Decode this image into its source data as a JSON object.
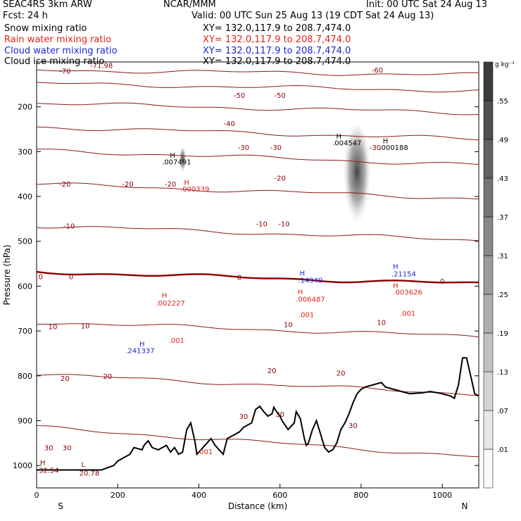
{
  "header": {
    "line1_left": "SEAC4RS  3km ARW",
    "line1_center": "NCAR/MMM",
    "line1_right": "Init: 00 UTC Sat 24 Aug 13",
    "line2_left": "Fcst:    24 h",
    "line2_right": "Valid: 00 UTC Sun 25 Aug 13 (19 CDT Sat 24 Aug 13)",
    "fields": [
      {
        "label": "Snow mixing ratio",
        "xy": "XY= 132.0,117.9 to 208.7,474.0",
        "color": "#000000"
      },
      {
        "label": "Rain water mixing ratio",
        "xy": "XY= 132.0,117.9 to 208.7,474.0",
        "color": "#e0241c"
      },
      {
        "label": "Cloud water mixing ratio",
        "xy": "XY= 132.0,117.9 to 208.7,474.0",
        "color": "#1c28d0"
      },
      {
        "label": "Cloud ice mixing ratio",
        "xy": "XY= 132.0,117.9 to 208.7,474.0",
        "color": "#000000"
      }
    ]
  },
  "chart_data": {
    "type": "line",
    "xlabel": "Distance (km)",
    "ylabel": "Pressure (hPa)",
    "xlim": [
      0,
      1090
    ],
    "ylim": [
      1050,
      100
    ],
    "x_ticks": [
      0,
      200,
      400,
      600,
      800,
      1000
    ],
    "y_ticks": [
      200,
      300,
      400,
      500,
      600,
      700,
      800,
      900,
      1000
    ],
    "x_end_labels": [
      "S",
      "N"
    ],
    "colorbar": {
      "unit": "g kg⁻¹",
      "labels": [
        ".01",
        ".07",
        ".13",
        ".19",
        ".25",
        ".31",
        ".37",
        ".43",
        ".49",
        ".55"
      ]
    },
    "terrain": {
      "x": [
        0,
        80,
        160,
        190,
        200,
        230,
        240,
        260,
        265,
        275,
        285,
        300,
        320,
        330,
        340,
        350,
        360,
        370,
        380,
        390,
        395,
        410,
        420,
        430,
        440,
        450,
        460,
        470,
        480,
        490,
        500,
        510,
        520,
        530,
        535,
        540,
        550,
        560,
        570,
        580,
        585,
        590,
        600,
        605,
        620,
        635,
        640,
        650,
        660,
        665,
        670,
        680,
        690,
        700,
        710,
        720,
        730,
        740,
        750,
        760,
        770,
        780,
        790,
        800,
        810,
        830,
        850,
        860,
        880,
        900,
        920,
        950,
        970,
        990,
        1000,
        1020,
        1030,
        1040,
        1050,
        1060,
        1070,
        1075,
        1080,
        1090
      ],
      "pressure": [
        1010,
        1010,
        1010,
        1000,
        990,
        975,
        960,
        965,
        955,
        945,
        960,
        965,
        955,
        970,
        960,
        975,
        970,
        920,
        905,
        945,
        975,
        960,
        950,
        940,
        955,
        965,
        975,
        940,
        935,
        930,
        925,
        915,
        910,
        905,
        890,
        875,
        868,
        880,
        890,
        885,
        870,
        878,
        890,
        900,
        920,
        905,
        880,
        895,
        940,
        955,
        950,
        920,
        900,
        930,
        960,
        970,
        965,
        950,
        920,
        905,
        885,
        860,
        840,
        830,
        825,
        820,
        815,
        825,
        830,
        835,
        840,
        838,
        835,
        838,
        840,
        845,
        850,
        820,
        760,
        760,
        800,
        820,
        840,
        845
      ]
    },
    "temperature_isotherms": [
      {
        "label": "0",
        "p0": 568,
        "slope": 0.025,
        "bold": true
      },
      {
        "label": "-10",
        "p0": 465,
        "slope": 0.03
      },
      {
        "label": "-20",
        "p0": 372,
        "slope": 0.03
      },
      {
        "label": "-30",
        "p0": 297,
        "slope": 0.03
      },
      {
        "label": "-40",
        "p0": 245,
        "slope": 0.025
      },
      {
        "label": "-50",
        "p0": 192,
        "slope": 0.02
      },
      {
        "label": "-60",
        "p0": 148,
        "slope": 0.015
      },
      {
        "label": "-70",
        "p0": 118,
        "slope": 0.01
      },
      {
        "label": "10",
        "p0": 680,
        "slope": 0.03
      },
      {
        "label": "20",
        "p0": 797,
        "slope": 0.04
      },
      {
        "label": "30",
        "p0": 915,
        "slope": 0.06
      }
    ],
    "isotherm_labels": [
      {
        "text": "-70",
        "x": 70,
        "p": 120
      },
      {
        "text": "-71.98",
        "x": 160,
        "p": 107
      },
      {
        "text": "-60",
        "x": 840,
        "p": 117
      },
      {
        "text": "-50",
        "x": 500,
        "p": 174
      },
      {
        "text": "-50",
        "x": 600,
        "p": 174
      },
      {
        "text": "-40",
        "x": 475,
        "p": 237
      },
      {
        "text": "-30",
        "x": 510,
        "p": 290
      },
      {
        "text": "-30",
        "x": 590,
        "p": 290
      },
      {
        "text": "-30",
        "x": 835,
        "p": 290
      },
      {
        "text": "-20",
        "x": 70,
        "p": 372
      },
      {
        "text": "-20",
        "x": 225,
        "p": 372
      },
      {
        "text": "-20",
        "x": 330,
        "p": 372
      },
      {
        "text": "-20",
        "x": 600,
        "p": 358
      },
      {
        "text": "-10",
        "x": 80,
        "p": 465
      },
      {
        "text": "-10",
        "x": 555,
        "p": 460
      },
      {
        "text": "-10",
        "x": 610,
        "p": 460
      },
      {
        "text": "0",
        "x": 10,
        "p": 578
      },
      {
        "text": "0",
        "x": 85,
        "p": 578
      },
      {
        "text": "0",
        "x": 500,
        "p": 580
      },
      {
        "text": "0",
        "x": 1000,
        "p": 588
      },
      {
        "text": "10",
        "x": 40,
        "p": 690
      },
      {
        "text": "10",
        "x": 120,
        "p": 688
      },
      {
        "text": "10",
        "x": 620,
        "p": 685
      },
      {
        "text": "10",
        "x": 850,
        "p": 680
      },
      {
        "text": "20",
        "x": 70,
        "p": 805
      },
      {
        "text": "20",
        "x": 175,
        "p": 800
      },
      {
        "text": "20",
        "x": 580,
        "p": 788
      },
      {
        "text": "20",
        "x": 750,
        "p": 793
      },
      {
        "text": "30",
        "x": 30,
        "p": 960
      },
      {
        "text": "30",
        "x": 75,
        "p": 960
      },
      {
        "text": "30",
        "x": 510,
        "p": 890
      },
      {
        "text": "30",
        "x": 600,
        "p": 885
      },
      {
        "text": "30",
        "x": 780,
        "p": 910
      }
    ],
    "extrema": [
      {
        "text": "H",
        "x": 15,
        "p": 993,
        "color": "#8b0000"
      },
      {
        "text": "32.54",
        "x": 30,
        "p": 1010,
        "color": "#8b0000"
      },
      {
        "text": "L",
        "x": 115,
        "p": 997,
        "color": "#8b0000"
      },
      {
        "text": "20.78",
        "x": 130,
        "p": 1016,
        "color": "#8b0000"
      },
      {
        "text": "H",
        "x": 335,
        "p": 307,
        "color": "#000000"
      },
      {
        "text": ".007491",
        "x": 345,
        "p": 322,
        "color": "#000000"
      },
      {
        "text": "H",
        "x": 745,
        "p": 265,
        "color": "#000000"
      },
      {
        "text": ".004547",
        "x": 765,
        "p": 280,
        "color": "#000000"
      },
      {
        "text": "H",
        "x": 860,
        "p": 275,
        "color": "#000000"
      },
      {
        "text": ".000188",
        "x": 880,
        "p": 290,
        "color": "#000000"
      },
      {
        "text": "H",
        "x": 370,
        "p": 368,
        "color": "#e0241c"
      },
      {
        "text": ".000339",
        "x": 390,
        "p": 383,
        "color": "#e0241c"
      },
      {
        "text": "H",
        "x": 315,
        "p": 620,
        "color": "#e0241c"
      },
      {
        "text": ".002227",
        "x": 330,
        "p": 637,
        "color": "#e0241c"
      },
      {
        "text": "H",
        "x": 650,
        "p": 612,
        "color": "#e0241c"
      },
      {
        "text": ".006487",
        "x": 675,
        "p": 628,
        "color": "#e0241c"
      },
      {
        "text": "H",
        "x": 885,
        "p": 598,
        "color": "#e0241c"
      },
      {
        "text": ".003626",
        "x": 915,
        "p": 613,
        "color": "#e0241c"
      },
      {
        "text": ".001",
        "x": 345,
        "p": 720,
        "color": "#e0241c"
      },
      {
        "text": ".001",
        "x": 665,
        "p": 663,
        "color": "#e0241c"
      },
      {
        "text": ".001",
        "x": 915,
        "p": 660,
        "color": "#e0241c"
      },
      {
        "text": ".001",
        "x": 415,
        "p": 968,
        "color": "#e0241c"
      },
      {
        "text": "H",
        "x": 260,
        "p": 728,
        "color": "#1c28d0"
      },
      {
        "text": ".241337",
        "x": 255,
        "p": 743,
        "color": "#1c28d0"
      },
      {
        "text": "H",
        "x": 655,
        "p": 570,
        "color": "#1c28d0"
      },
      {
        "text": ".14949",
        "x": 675,
        "p": 586,
        "color": "#1c28d0"
      },
      {
        "text": "H",
        "x": 885,
        "p": 555,
        "color": "#1c28d0"
      },
      {
        "text": ".21154",
        "x": 905,
        "p": 572,
        "color": "#1c28d0"
      }
    ],
    "cloud_ice_plumes": [
      {
        "x": 360,
        "p_top": 290,
        "p_bottom": 350,
        "width_km": 18,
        "max": 0.55
      },
      {
        "x": 790,
        "p_top": 240,
        "p_bottom": 475,
        "width_km": 70,
        "max": 0.55
      }
    ]
  }
}
